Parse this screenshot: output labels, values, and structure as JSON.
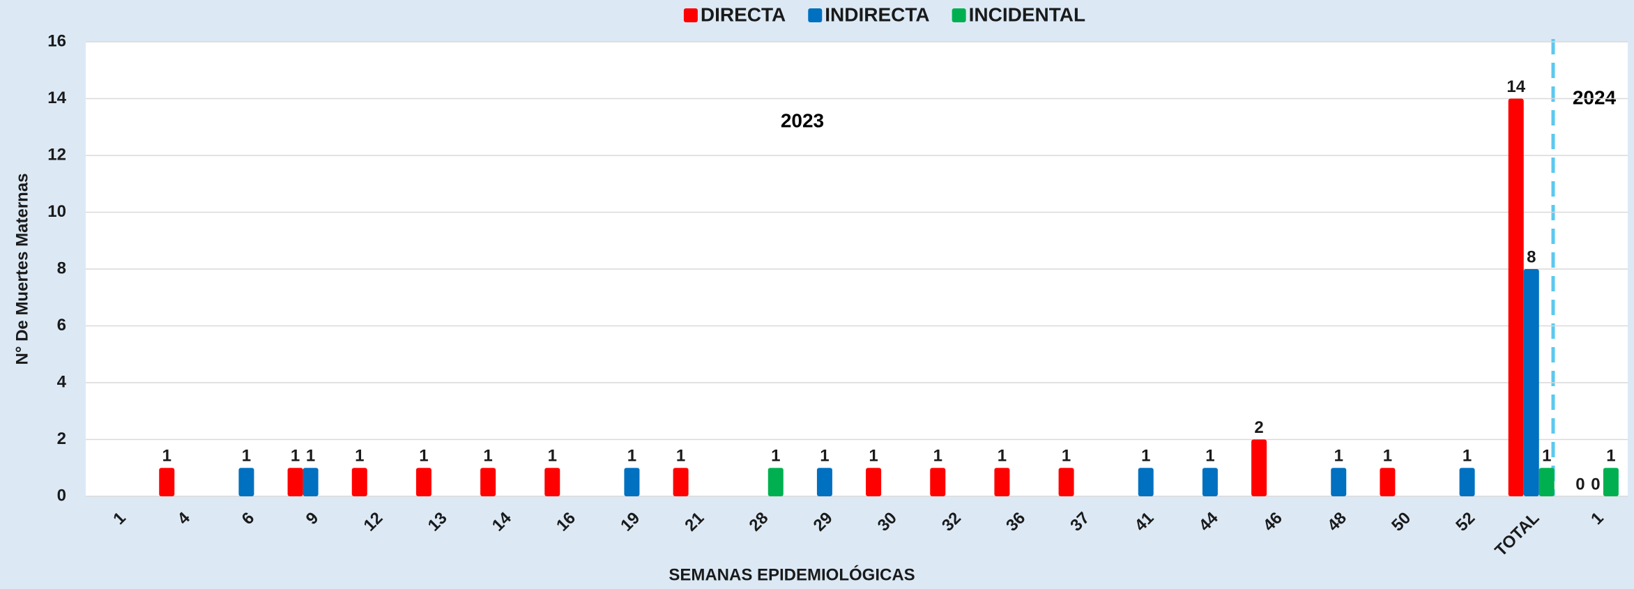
{
  "chart_data": {
    "type": "bar",
    "y_label": "N° De Muertes Maternas",
    "x_label": "SEMANAS EPIDEMIOLÓGICAS",
    "annotations": [
      "2023",
      "2024"
    ],
    "categories": [
      "1",
      "4",
      "6",
      "9",
      "12",
      "13",
      "14",
      "16",
      "19",
      "21",
      "28",
      "29",
      "30",
      "32",
      "36",
      "37",
      "41",
      "44",
      "46",
      "48",
      "50",
      "52",
      "TOTAL",
      "1"
    ],
    "series": [
      {
        "name": "DIRECTA",
        "color": "#ff0000",
        "values": [
          null,
          1,
          null,
          1,
          1,
          1,
          1,
          1,
          null,
          1,
          null,
          null,
          1,
          1,
          1,
          1,
          null,
          null,
          2,
          null,
          1,
          null,
          14,
          0
        ]
      },
      {
        "name": "INDIRECTA",
        "color": "#0070c0",
        "values": [
          null,
          null,
          1,
          1,
          null,
          null,
          null,
          null,
          1,
          null,
          null,
          1,
          null,
          null,
          null,
          null,
          1,
          1,
          null,
          1,
          null,
          1,
          8,
          0
        ]
      },
      {
        "name": "INCIDENTAL",
        "color": "#00b050",
        "values": [
          null,
          null,
          null,
          null,
          null,
          null,
          null,
          null,
          null,
          null,
          1,
          null,
          null,
          null,
          null,
          null,
          null,
          null,
          null,
          null,
          null,
          null,
          1,
          1
        ]
      }
    ],
    "ylim": [
      0,
      16
    ],
    "yticks": [
      0,
      2,
      4,
      6,
      8,
      10,
      12,
      14,
      16
    ],
    "grid": true,
    "legend": "top"
  }
}
